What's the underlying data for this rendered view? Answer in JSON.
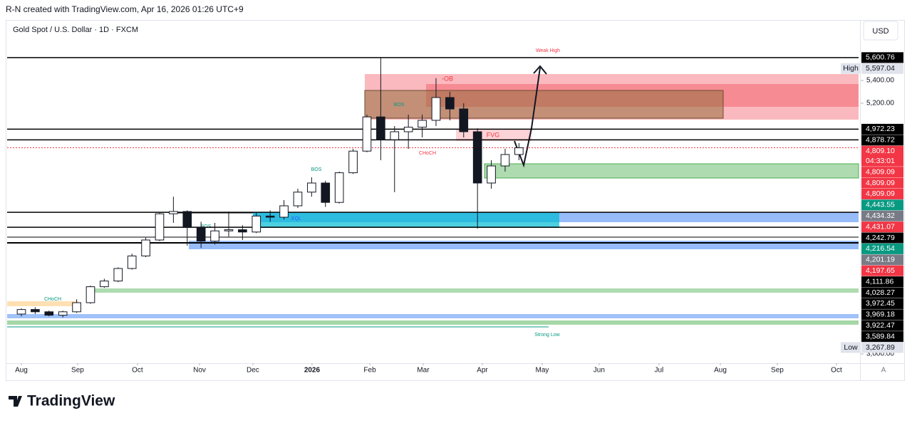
{
  "header": {
    "caption": "R-N created with TradingView.com, Apr 16, 2026 01:26 UTC+9"
  },
  "chart_data": {
    "type": "candlestick",
    "title": "Gold Spot / U.S. Dollar · 1D · FXCM",
    "currency": "USD",
    "categories": [
      null,
      null,
      null,
      null,
      null,
      null,
      null,
      null,
      null,
      null,
      null,
      null,
      null,
      null,
      null,
      null,
      null,
      null,
      null,
      null,
      null,
      null,
      null,
      null,
      null,
      null,
      null,
      null,
      null,
      null,
      null,
      null,
      null,
      null,
      null,
      null,
      null
    ],
    "open": [
      3350,
      3390,
      3370,
      3340,
      3370,
      3450,
      3590,
      3640,
      3750,
      3860,
      4000,
      4230,
      4250,
      4110,
      3990,
      4080,
      4090,
      4070,
      4210,
      4200,
      4300,
      4420,
      4500,
      4330,
      4590,
      4780,
      5080,
      4880,
      4950,
      4990,
      5050,
      5250,
      5150,
      4950,
      4500,
      4650,
      4750
    ],
    "high": [
      3400,
      3410,
      3380,
      3380,
      3480,
      3600,
      3660,
      3760,
      3880,
      4020,
      4240,
      4380,
      4260,
      4160,
      4150,
      4250,
      4130,
      4240,
      4260,
      4350,
      4450,
      4550,
      4520,
      4600,
      4800,
      5100,
      5597,
      5000,
      5100,
      5100,
      5420,
      5300,
      5200,
      4980,
      4700,
      4800,
      4850
    ],
    "low": [
      3330,
      3350,
      3330,
      3320,
      3360,
      3440,
      3580,
      3630,
      3740,
      3850,
      3990,
      4150,
      3950,
      3930,
      3960,
      4030,
      4000,
      4060,
      4160,
      4180,
      4280,
      4380,
      4290,
      4320,
      4580,
      4770,
      4700,
      4420,
      4800,
      4900,
      5000,
      5050,
      4900,
      4100,
      4450,
      4600,
      4700
    ],
    "close": [
      3390,
      3370,
      3340,
      3370,
      3450,
      3590,
      3640,
      3750,
      3860,
      4000,
      4230,
      4250,
      4110,
      3990,
      4080,
      4090,
      4070,
      4210,
      4200,
      4300,
      4420,
      4500,
      4330,
      4590,
      4780,
      5080,
      4880,
      4950,
      4990,
      5050,
      5250,
      5150,
      4950,
      4500,
      4650,
      4750,
      4809.09
    ],
    "up_color": "#ffffff",
    "down_color": "#131722",
    "ylim": [
      2919,
      5931
    ],
    "yticks": [
      {
        "value": 5400,
        "label": "5,400.00"
      },
      {
        "value": 5200,
        "label": "5,200.00"
      },
      {
        "value": 3000,
        "label": "3,000.00"
      }
    ],
    "xlim": [
      -1.03,
      60.57
    ],
    "xticks": [
      {
        "value": 0,
        "label": "Aug"
      },
      {
        "value": 4.07,
        "label": "Sep"
      },
      {
        "value": 8.4,
        "label": "Oct"
      },
      {
        "value": 12.89,
        "label": "Nov"
      },
      {
        "value": 16.75,
        "label": "Dec"
      },
      {
        "value": 21.03,
        "label": "2026"
      },
      {
        "value": 25.21,
        "label": "Feb"
      },
      {
        "value": 29.07,
        "label": "Mar"
      },
      {
        "value": 33.35,
        "label": "Apr"
      },
      {
        "value": 37.68,
        "label": "May"
      },
      {
        "value": 41.8,
        "label": "Jun"
      },
      {
        "value": 46.13,
        "label": "Jul"
      },
      {
        "value": 50.57,
        "label": "Aug"
      },
      {
        "value": 54.69,
        "label": "Sep"
      },
      {
        "value": 58.97,
        "label": "Oct"
      }
    ],
    "price_labels": [
      {
        "value": 5600.76,
        "label": "5,600.76",
        "color": "#000000",
        "line": "solid"
      },
      {
        "value": 5597.04,
        "label": "5,597.04",
        "color": "#e0e3eb",
        "note": "High"
      },
      {
        "value": 4972.23,
        "label": "4,972.23",
        "color": "#000000",
        "line": "solid"
      },
      {
        "value": 4878.72,
        "label": "4,878.72",
        "color": "#000000",
        "line": "solid"
      },
      {
        "value": 4809.1,
        "label": "4,809.10",
        "color": "#f23645",
        "line": "dotted",
        "countdown": "04:33:01"
      },
      {
        "value": 4809.09,
        "label": "4,809.09",
        "color": "#f23645"
      },
      {
        "value": 4809.09,
        "label": "4,809.09",
        "color": "#f23645"
      },
      {
        "value": 4809.09,
        "label": "4,809.09",
        "color": "#f23645"
      },
      {
        "value": 4443.55,
        "label": "4,443.55",
        "color": "#089981"
      },
      {
        "value": 4434.32,
        "label": "4,434.32",
        "color": "#787b86"
      },
      {
        "value": 4431.07,
        "label": "4,431.07",
        "color": "#f23645"
      },
      {
        "value": 4242.79,
        "label": "4,242.79",
        "color": "#000000",
        "line": "solid"
      },
      {
        "value": 4216.54,
        "label": "4,216.54",
        "color": "#089981"
      },
      {
        "value": 4201.19,
        "label": "4,201.19",
        "color": "#787b86"
      },
      {
        "value": 4197.65,
        "label": "4,197.65",
        "color": "#f23645"
      },
      {
        "value": 4111.86,
        "label": "4,111.86",
        "color": "#000000",
        "line": "solid"
      },
      {
        "value": 4028.27,
        "label": "4,028.27",
        "color": "#000000"
      },
      {
        "value": 3972.45,
        "label": "3,972.45",
        "color": "#000000"
      },
      {
        "value": 3969.18,
        "label": "3,969.18",
        "color": "#000000"
      },
      {
        "value": 3922.47,
        "label": "3,922.47",
        "color": "#000000"
      },
      {
        "value": 3589.84,
        "label": "3,589.84",
        "color": "#000000"
      },
      {
        "value": 3267.89,
        "label": "3,267.89",
        "color": "#e0e3eb",
        "note": "Low"
      }
    ],
    "annotations": [
      "Weak High",
      "-OB",
      "FVG",
      "BOS",
      "BOS",
      "BOS",
      "CHoCH",
      "CHoCH",
      "EQL",
      "Strong Low"
    ]
  },
  "footer": {
    "brand": "TradingView",
    "scale_button": "A"
  }
}
